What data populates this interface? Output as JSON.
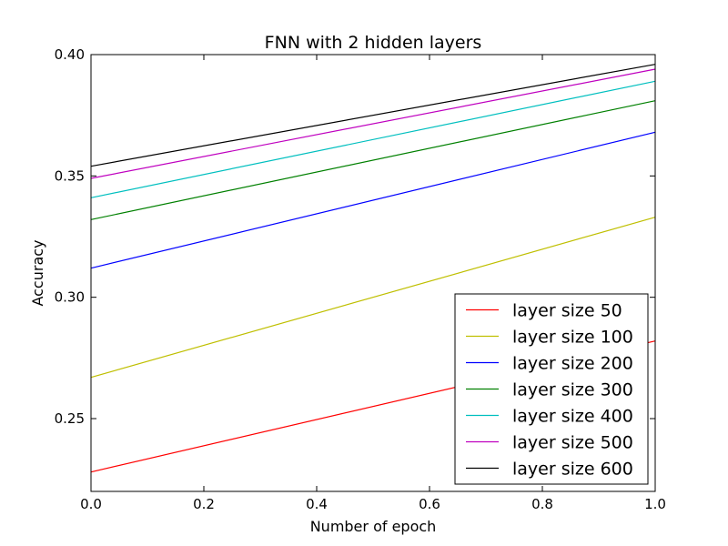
{
  "chart_data": {
    "type": "line",
    "title": "FNN with 2 hidden layers",
    "xlabel": "Number of epoch",
    "ylabel": "Accuracy",
    "xlim": [
      0.0,
      1.0
    ],
    "ylim": [
      0.22,
      0.4
    ],
    "xticks": [
      "0.0",
      "0.2",
      "0.4",
      "0.6",
      "0.8",
      "1.0"
    ],
    "yticks": [
      "0.25",
      "0.30",
      "0.35",
      "0.40"
    ],
    "grid": false,
    "legend_position": "lower-right",
    "x": [
      0.0,
      1.0
    ],
    "series": [
      {
        "name": "layer size 50",
        "color": "#ff0000",
        "values": [
          0.228,
          0.282
        ]
      },
      {
        "name": "layer size 100",
        "color": "#bfbf00",
        "values": [
          0.267,
          0.333
        ]
      },
      {
        "name": "layer size 200",
        "color": "#0000ff",
        "values": [
          0.312,
          0.368
        ]
      },
      {
        "name": "layer size 300",
        "color": "#008000",
        "values": [
          0.332,
          0.381
        ]
      },
      {
        "name": "layer size 400",
        "color": "#00bfbf",
        "values": [
          0.341,
          0.389
        ]
      },
      {
        "name": "layer size 500",
        "color": "#bf00bf",
        "values": [
          0.349,
          0.394
        ]
      },
      {
        "name": "layer size 600",
        "color": "#000000",
        "values": [
          0.354,
          0.396
        ]
      }
    ]
  }
}
